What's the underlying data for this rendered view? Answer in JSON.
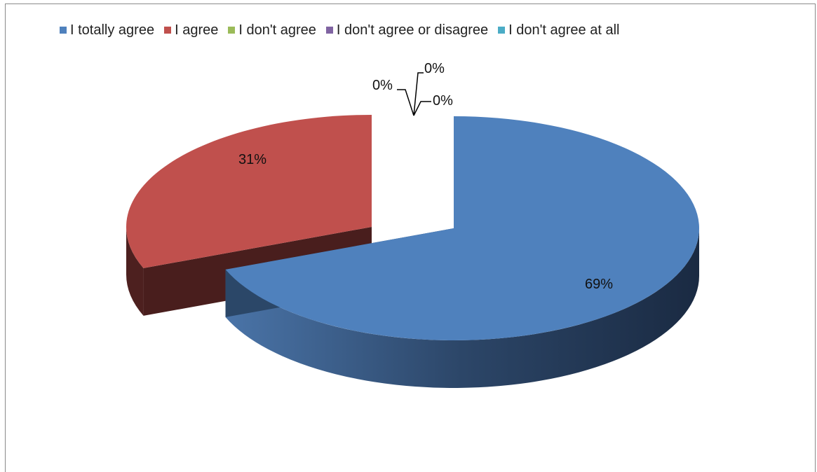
{
  "chart_data": {
    "type": "pie",
    "title": "",
    "style": "3d-exploded",
    "legend_position": "top",
    "slices": [
      {
        "name": "I totally agree",
        "value": 69,
        "label": "69%",
        "color": "#4f81bd"
      },
      {
        "name": "I agree",
        "value": 31,
        "label": "31%",
        "color": "#c0504d"
      },
      {
        "name": "I don't agree",
        "value": 0,
        "label": "0%",
        "color": "#9bbb59"
      },
      {
        "name": "I don't agree or disagree",
        "value": 0,
        "label": "0%",
        "color": "#8064a2"
      },
      {
        "name": "I don't agree at all",
        "value": 0,
        "label": "0%",
        "color": "#4bacc6"
      }
    ]
  }
}
